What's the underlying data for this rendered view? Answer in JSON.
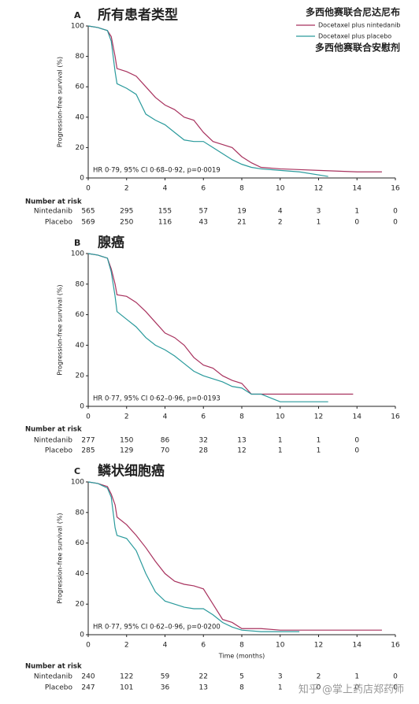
{
  "chart_data": [
    {
      "type": "line",
      "panel": "A",
      "title": "所有患者类型",
      "y_label": "Progression-free survival (%)",
      "annotation": "HR 0·79, 95% CI 0·68–0·92, p=0·0019",
      "xlim": [
        0,
        16
      ],
      "ylim": [
        0,
        100
      ],
      "xticks": [
        0,
        2,
        4,
        6,
        8,
        10,
        12,
        14,
        16
      ],
      "yticks": [
        0,
        20,
        40,
        60,
        80,
        100
      ],
      "legend": true,
      "legend_position": "upper right",
      "legend_notes": [
        "多西他赛联合尼达尼布",
        "多西他赛联合安慰剂"
      ],
      "series": [
        {
          "name": "Docetaxel plus nintedanib",
          "color": "#a8325e",
          "x": [
            0,
            0.5,
            1,
            1.2,
            1.4,
            1.5,
            2,
            2.5,
            3,
            3.5,
            4,
            4.5,
            5,
            5.5,
            6,
            6.5,
            7,
            7.5,
            8,
            8.5,
            9,
            10,
            12,
            14,
            15.3
          ],
          "values": [
            100,
            99,
            97,
            93,
            80,
            72,
            70,
            67,
            60,
            53,
            48,
            45,
            40,
            38,
            30,
            24,
            22,
            20,
            14,
            10,
            7,
            6,
            5,
            4,
            4
          ]
        },
        {
          "name": "Docetaxel plus placebo",
          "color": "#2a9a9c",
          "x": [
            0,
            0.5,
            1,
            1.2,
            1.4,
            1.5,
            2,
            2.5,
            3,
            3.5,
            4,
            4.5,
            5,
            5.5,
            6,
            6.5,
            7,
            7.5,
            8,
            8.5,
            9,
            10,
            11,
            12.5
          ],
          "values": [
            100,
            99,
            97,
            90,
            70,
            62,
            59,
            55,
            42,
            38,
            35,
            30,
            25,
            24,
            24,
            20,
            16,
            12,
            9,
            7,
            6,
            5,
            4,
            1
          ]
        }
      ],
      "risk_table": {
        "title": "Number at risk",
        "rows": [
          {
            "name": "Nintedanib",
            "values": [
              565,
              295,
              155,
              57,
              19,
              4,
              3,
              1,
              0
            ]
          },
          {
            "name": "Placebo",
            "values": [
              569,
              250,
              116,
              43,
              21,
              2,
              1,
              0,
              0
            ]
          }
        ]
      }
    },
    {
      "type": "line",
      "panel": "B",
      "title": "腺癌",
      "y_label": "Progression-free survival (%)",
      "annotation": "HR 0·77, 95% CI 0·62–0·96, p=0·0193",
      "xlim": [
        0,
        16
      ],
      "ylim": [
        0,
        100
      ],
      "xticks": [
        0,
        2,
        4,
        6,
        8,
        10,
        12,
        14,
        16
      ],
      "yticks": [
        0,
        20,
        40,
        60,
        80,
        100
      ],
      "series": [
        {
          "color": "#a8325e",
          "x": [
            0,
            0.5,
            1,
            1.2,
            1.4,
            1.5,
            2,
            2.5,
            3,
            3.5,
            4,
            4.5,
            5,
            5.5,
            6,
            6.5,
            7,
            7.5,
            8,
            8.5,
            9,
            10,
            12,
            13.8
          ],
          "values": [
            100,
            99,
            97,
            90,
            80,
            73,
            72,
            68,
            62,
            55,
            48,
            45,
            40,
            32,
            27,
            25,
            20,
            17,
            15,
            8,
            8,
            8,
            8,
            8
          ]
        },
        {
          "color": "#2a9a9c",
          "x": [
            0,
            0.5,
            1,
            1.2,
            1.4,
            1.5,
            2,
            2.5,
            3,
            3.5,
            4,
            4.5,
            5,
            5.5,
            6,
            6.5,
            7,
            7.5,
            8,
            8.5,
            9,
            10,
            12.5
          ],
          "values": [
            100,
            99,
            97,
            88,
            72,
            62,
            57,
            52,
            45,
            40,
            37,
            33,
            28,
            23,
            20,
            18,
            16,
            13,
            12,
            8,
            8,
            3,
            3
          ]
        }
      ],
      "risk_table": {
        "title": "Number at risk",
        "rows": [
          {
            "name": "Nintedanib",
            "values": [
              277,
              150,
              86,
              32,
              13,
              1,
              1,
              0
            ]
          },
          {
            "name": "Placebo",
            "values": [
              285,
              129,
              70,
              28,
              12,
              1,
              1,
              0
            ]
          }
        ]
      }
    },
    {
      "type": "line",
      "panel": "C",
      "title": "鳞状细胞癌",
      "y_label": "Progression-free survival (%)",
      "x_label": "Time (months)",
      "annotation": "HR 0·77, 95% CI 0·62–0·96, p=0·0200",
      "xlim": [
        0,
        16
      ],
      "ylim": [
        0,
        100
      ],
      "xticks": [
        0,
        2,
        4,
        6,
        8,
        10,
        12,
        14,
        16
      ],
      "yticks": [
        0,
        20,
        40,
        60,
        80,
        100
      ],
      "series": [
        {
          "color": "#a8325e",
          "x": [
            0,
            0.5,
            1,
            1.2,
            1.4,
            1.5,
            2,
            2.5,
            3,
            3.5,
            4,
            4.5,
            5,
            5.5,
            6,
            6.5,
            7,
            7.5,
            8,
            9,
            10,
            12,
            14,
            15.3
          ],
          "values": [
            100,
            99,
            97,
            92,
            85,
            77,
            72,
            65,
            57,
            48,
            40,
            35,
            33,
            32,
            30,
            20,
            10,
            8,
            4,
            4,
            3,
            3,
            3,
            3
          ]
        },
        {
          "color": "#2a9a9c",
          "x": [
            0,
            0.5,
            1,
            1.2,
            1.4,
            1.5,
            2,
            2.5,
            3,
            3.5,
            4,
            4.5,
            5,
            5.5,
            6,
            6.5,
            7,
            7.5,
            8,
            9,
            10,
            11
          ],
          "values": [
            100,
            99,
            96,
            90,
            70,
            65,
            63,
            55,
            40,
            28,
            22,
            20,
            18,
            17,
            17,
            13,
            8,
            5,
            3,
            2,
            2,
            2
          ]
        }
      ],
      "risk_table": {
        "title": "Number at risk",
        "rows": [
          {
            "name": "Nintedanib",
            "values": [
              240,
              122,
              59,
              22,
              5,
              3,
              2,
              1,
              0
            ]
          },
          {
            "name": "Placebo",
            "values": [
              247,
              101,
              36,
              13,
              8,
              1,
              0,
              0,
              0
            ]
          }
        ]
      }
    }
  ],
  "watermark": "知乎 @掌上药店郑药师"
}
